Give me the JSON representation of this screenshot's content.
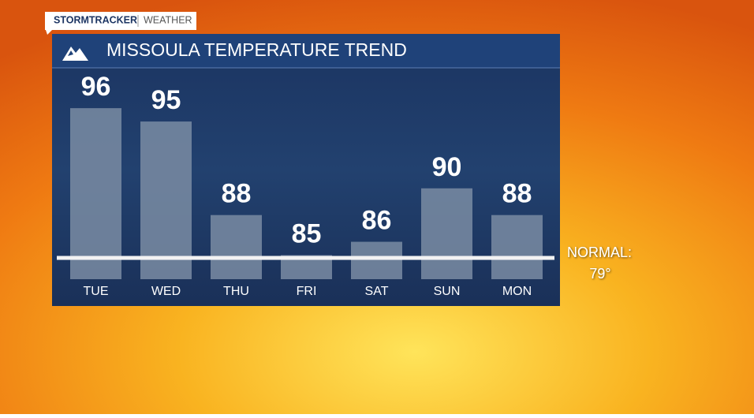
{
  "brand": {
    "name": "STORMTRACKER",
    "section": "WEATHER"
  },
  "chart_data": {
    "type": "bar",
    "title": "MISSOULA TEMPERATURE TREND",
    "categories": [
      "TUE",
      "WED",
      "THU",
      "FRI",
      "SAT",
      "SUN",
      "MON"
    ],
    "values": [
      96,
      95,
      88,
      85,
      86,
      90,
      88
    ],
    "color": "#7a8ca3",
    "ylim": [
      83.2,
      98.9
    ],
    "reference_line": {
      "name": "NORMAL:",
      "value": 79,
      "label": "79°"
    }
  }
}
